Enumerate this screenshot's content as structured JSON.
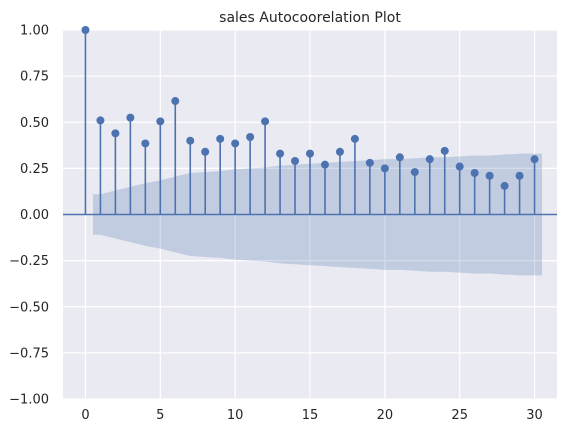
{
  "chart_data": {
    "type": "stem",
    "title": "sales Autocoorelation Plot",
    "xlabel": "",
    "ylabel": "",
    "xlim": [
      -1.5,
      31.5
    ],
    "ylim": [
      -1.0,
      1.0
    ],
    "xticks": [
      0,
      5,
      10,
      15,
      20,
      25,
      30
    ],
    "xtick_labels": [
      "0",
      "5",
      "10",
      "15",
      "20",
      "25",
      "30"
    ],
    "yticks": [
      -1.0,
      -0.75,
      -0.5,
      -0.25,
      0.0,
      0.25,
      0.5,
      0.75,
      1.0
    ],
    "ytick_labels": [
      "−1.00",
      "−0.75",
      "−0.50",
      "−0.25",
      "0.00",
      "0.25",
      "0.50",
      "0.75",
      "1.00"
    ],
    "grid": true,
    "series": [
      {
        "lags": [
          0,
          1,
          2,
          3,
          4,
          5,
          6,
          7,
          8,
          9,
          10,
          11,
          12,
          13,
          14,
          15,
          16,
          17,
          18,
          19,
          20,
          21,
          22,
          23,
          24,
          25,
          26,
          27,
          28,
          29,
          30
        ],
        "values": [
          1.0,
          0.51,
          0.44,
          0.525,
          0.385,
          0.505,
          0.615,
          0.4,
          0.34,
          0.41,
          0.385,
          0.42,
          0.505,
          0.33,
          0.29,
          0.33,
          0.27,
          0.34,
          0.41,
          0.28,
          0.25,
          0.31,
          0.23,
          0.3,
          0.345,
          0.26,
          0.225,
          0.21,
          0.155,
          0.21,
          0.3
        ]
      }
    ],
    "confidence_band": {
      "lags": [
        0.5,
        1,
        2,
        3,
        4,
        5,
        6,
        7,
        8,
        9,
        10,
        11,
        12,
        13,
        14,
        15,
        16,
        17,
        18,
        19,
        20,
        21,
        22,
        23,
        24,
        25,
        26,
        27,
        28,
        29,
        30,
        30.5
      ],
      "upper": [
        0.11,
        0.11,
        0.13,
        0.15,
        0.17,
        0.185,
        0.205,
        0.225,
        0.23,
        0.235,
        0.245,
        0.25,
        0.255,
        0.265,
        0.27,
        0.275,
        0.28,
        0.285,
        0.29,
        0.295,
        0.3,
        0.3,
        0.305,
        0.31,
        0.31,
        0.315,
        0.32,
        0.32,
        0.325,
        0.33,
        0.33,
        0.33
      ]
    },
    "colors": {
      "stem": "#4c72b0",
      "band": "#4c72b0",
      "axes_bg": "#eaeaf2",
      "grid": "#ffffff",
      "text": "#262626"
    }
  }
}
